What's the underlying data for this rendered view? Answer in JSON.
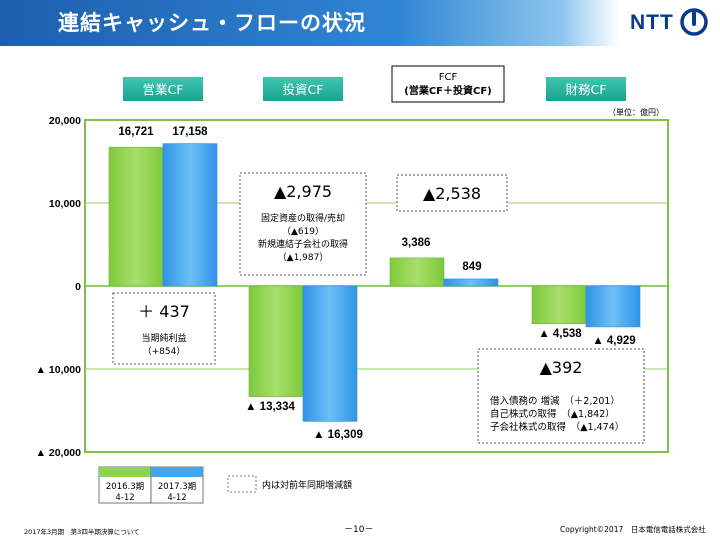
{
  "header": {
    "title": "連結キャッシュ・フローの状況",
    "logo": "NTT",
    "accent_color": "#2f85d3"
  },
  "unit_label": "（単位：億円）",
  "chart_data": {
    "type": "bar",
    "ylim": [
      -20000,
      20000
    ],
    "y_ticks": [
      {
        "value": 20000,
        "label": "20,000"
      },
      {
        "value": 10000,
        "label": "10,000"
      },
      {
        "value": 0,
        "label": "0"
      },
      {
        "value": -10000,
        "label": "▲ 10,000"
      },
      {
        "value": -20000,
        "label": "▲ 20,000"
      }
    ],
    "grid": true,
    "categories": [
      "営業CF",
      "投資CF",
      "FCF\n(営業CF＋投資CF)",
      "財務CF"
    ],
    "series": [
      {
        "name": "2016.3期 4-12",
        "color": "#8ed34f",
        "values": [
          16721,
          -13334,
          3386,
          -4538
        ],
        "labels": [
          "16,721",
          "▲ 13,334",
          "3,386",
          "▲ 4,538"
        ]
      },
      {
        "name": "2017.3期 4-12",
        "color": "#41a5ef",
        "values": [
          17158,
          -16309,
          849,
          -4929
        ],
        "labels": [
          "17,158",
          "▲ 16,309",
          "849",
          "▲ 4,929"
        ]
      }
    ],
    "annotations": [
      {
        "category": 0,
        "big": "＋ 437",
        "lines": [
          "当期純利益",
          "（+854）"
        ]
      },
      {
        "category": 1,
        "big": "▲2,975",
        "lines": [
          "固定資産の取得/売却",
          "（▲619）",
          "新規連結子会社の取得",
          "（▲1,987）"
        ]
      },
      {
        "category": 2,
        "big": "▲2,538",
        "lines": []
      },
      {
        "category": 3,
        "big": "▲392",
        "lines": [
          "借入債務の 増減　（＋2,201）",
          "自己株式の取得　（▲1,842）",
          "子会社株式の取得　（▲1,474）"
        ]
      }
    ],
    "legend": {
      "items": [
        {
          "line1": "2016.3期",
          "line2": "4-12",
          "color": "#8ed34f"
        },
        {
          "line1": "2017.3期",
          "line2": "4-12",
          "color": "#41a5ef"
        }
      ],
      "note": "内は対前年同期増減額"
    }
  },
  "footer": {
    "left": "2017年3月期　第3四半期決算について",
    "page": "－10－",
    "copyright": "Copyright©2017　日本電信電話株式会社"
  }
}
